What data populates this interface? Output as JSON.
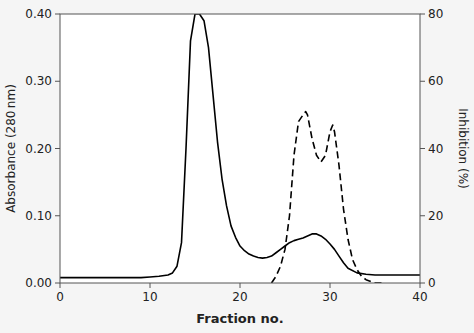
{
  "chart_data": {
    "type": "line",
    "x_label": "Fraction no.",
    "y_label": "Absorbance (280 nm)",
    "y2_label": "Inhibition (%)",
    "xlim": [
      0,
      40
    ],
    "xticks": [
      0,
      10,
      20,
      30,
      40
    ],
    "ylim": [
      0.0,
      0.4
    ],
    "yticks": [
      {
        "value": 0.0,
        "label": "0.00"
      },
      {
        "value": 0.1,
        "label": "0.10"
      },
      {
        "value": 0.2,
        "label": "0.20"
      },
      {
        "value": 0.3,
        "label": "0.30"
      },
      {
        "value": 0.4,
        "label": "0.40"
      }
    ],
    "y2lim": [
      0,
      80
    ],
    "y2ticks": [
      0,
      20,
      40,
      60,
      80
    ],
    "series": [
      {
        "color": "#000000",
        "line_style": "solid",
        "x": [
          0,
          1,
          2,
          3,
          4,
          5,
          6,
          7,
          8,
          9,
          10,
          11,
          12,
          12.5,
          13,
          13.5,
          14,
          14.5,
          15,
          15.5,
          16,
          16.5,
          17,
          17.5,
          18,
          18.5,
          19,
          19.5,
          20,
          20.5,
          21,
          21.5,
          22,
          22.5,
          23,
          23.5,
          24,
          24.5,
          25,
          25.5,
          26,
          26.5,
          27,
          27.5,
          28,
          28.5,
          29,
          29.5,
          30,
          30.5,
          31,
          31.5,
          32,
          33,
          34,
          35,
          36,
          37,
          38,
          39,
          40
        ],
        "values": [
          0.008,
          0.008,
          0.008,
          0.008,
          0.008,
          0.008,
          0.008,
          0.008,
          0.008,
          0.008,
          0.009,
          0.01,
          0.012,
          0.015,
          0.025,
          0.06,
          0.2,
          0.36,
          0.4,
          0.4,
          0.39,
          0.35,
          0.28,
          0.21,
          0.155,
          0.115,
          0.085,
          0.068,
          0.055,
          0.048,
          0.043,
          0.04,
          0.038,
          0.037,
          0.038,
          0.04,
          0.045,
          0.05,
          0.055,
          0.06,
          0.063,
          0.065,
          0.067,
          0.07,
          0.073,
          0.073,
          0.07,
          0.065,
          0.058,
          0.05,
          0.04,
          0.03,
          0.022,
          0.015,
          0.013,
          0.012,
          0.012,
          0.012,
          0.012,
          0.012,
          0.012
        ]
      },
      {
        "color": "#000000",
        "line_style": "dashed",
        "axis": "y2",
        "x": [
          23.5,
          24,
          24.5,
          25,
          25.5,
          26,
          26.5,
          27,
          27.3,
          27.5,
          28,
          28.5,
          29,
          29.5,
          30,
          30.3,
          30.5,
          31,
          31.5,
          32,
          32.5,
          33,
          33.5,
          34,
          35,
          36
        ],
        "values": [
          0,
          2,
          5,
          10,
          20,
          38,
          48,
          50,
          51,
          50,
          43,
          38,
          36,
          38,
          45,
          47,
          45,
          35,
          22,
          13,
          7,
          4,
          2,
          1,
          0,
          0
        ]
      }
    ]
  }
}
